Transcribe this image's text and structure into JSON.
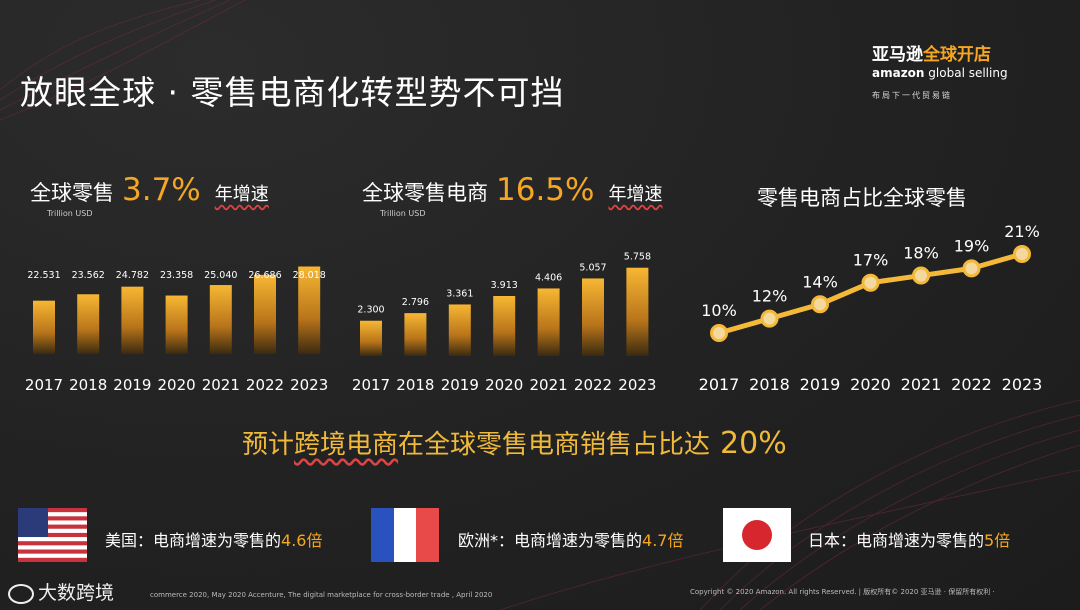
{
  "title": "放眼全球 · 零售电商化转型势不可挡",
  "logo": {
    "cn_white": "亚马逊",
    "cn_orange": "全球开店",
    "en_brand": "amazon",
    "en_rest": " global selling",
    "tagline": "布局下一代贸易链"
  },
  "panels": {
    "retail": {
      "label": "全球零售",
      "value": "3.7%",
      "suffix": "年增速",
      "unit": "Trillion USD"
    },
    "ecom": {
      "label": "全球零售电商",
      "value": "16.5%",
      "suffix": "年增速",
      "unit": "Trillion USD"
    },
    "share": {
      "label": "零售电商占比全球零售"
    }
  },
  "chart_data": [
    {
      "type": "bar",
      "categories": [
        "2017",
        "2018",
        "2019",
        "2020",
        "2021",
        "2022",
        "2023"
      ],
      "values": [
        22.531,
        23.562,
        24.782,
        23.358,
        25.04,
        26.686,
        28.018
      ],
      "value_labels": [
        "22.531",
        "23.562",
        "24.782",
        "23.358",
        "25.040",
        "26.686",
        "28.018"
      ],
      "title": "全球零售",
      "unit": "Trillion USD",
      "color": "#f5a623"
    },
    {
      "type": "bar",
      "categories": [
        "2017",
        "2018",
        "2019",
        "2020",
        "2021",
        "2022",
        "2023"
      ],
      "values": [
        2.3,
        2.796,
        3.361,
        3.913,
        4.406,
        5.057,
        5.758
      ],
      "value_labels": [
        "2.300",
        "2.796",
        "3.361",
        "3.913",
        "4.406",
        "5.057",
        "5.758"
      ],
      "title": "全球零售电商",
      "unit": "Trillion USD",
      "color": "#f5a623"
    },
    {
      "type": "line",
      "categories": [
        "2017",
        "2018",
        "2019",
        "2020",
        "2021",
        "2022",
        "2023"
      ],
      "values": [
        10,
        12,
        14,
        17,
        18,
        19,
        21
      ],
      "value_labels": [
        "10%",
        "12%",
        "14%",
        "17%",
        "18%",
        "19%",
        "21%"
      ],
      "title": "零售电商占比全球零售",
      "color": "#f5b93a"
    }
  ],
  "headline": {
    "pre": "预计",
    "underlined": "跨境电商",
    "mid": "在全球零售电商销售占比达",
    "pct": "20%"
  },
  "countries": [
    {
      "name": "美国：电商增速为零售的",
      "mult": "4.6倍"
    },
    {
      "name": "欧洲*：电商增速为零售的",
      "mult": "4.7倍"
    },
    {
      "name": "日本：电商增速为零售的",
      "mult": "5倍"
    }
  ],
  "source": "commerce 2020, May 2020   Accenture, The digital marketplace for cross-border trade , April 2020",
  "copyright": "Copyright © 2020 Amazon. All rights Reserved. | 版权所有© 2020 亚马逊 · 保留所有权利 ·",
  "watermark": "大数跨境",
  "colors": {
    "accent": "#f5a623",
    "background": "#232323",
    "us_blue": "#2b3a78",
    "us_red": "#c8323c",
    "fr_blue": "#2a52be",
    "fr_red": "#e84a4a",
    "jp_red": "#d7262e"
  }
}
